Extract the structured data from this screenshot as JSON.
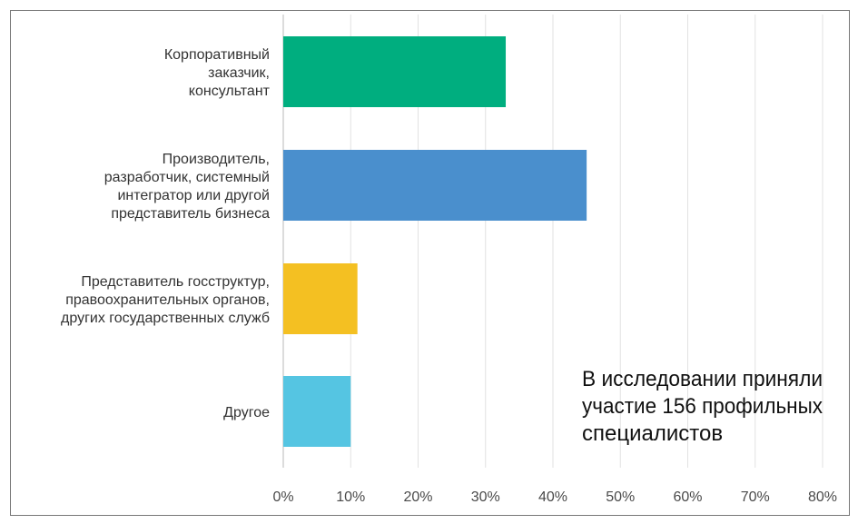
{
  "chart_data": {
    "type": "bar",
    "orientation": "horizontal",
    "categories": [
      [
        "Корпоративный",
        "заказчик,",
        "консультант"
      ],
      [
        "Производитель,",
        "разработчик, системный",
        "интегратор или другой",
        "представитель бизнеса"
      ],
      [
        "Представитель госструктур,",
        "правоохранительных органов,",
        "других государственных служб"
      ],
      [
        "Другое"
      ]
    ],
    "values": [
      33,
      45,
      11,
      10
    ],
    "colors": [
      "#00ae7f",
      "#4a8fcd",
      "#f4c022",
      "#55c5e2"
    ],
    "xlim": [
      0,
      80
    ],
    "x_ticks": [
      0,
      10,
      20,
      30,
      40,
      50,
      60,
      70,
      80
    ],
    "tick_labels": [
      "0%",
      "10%",
      "20%",
      "30%",
      "40%",
      "50%",
      "60%",
      "70%",
      "80%"
    ],
    "grid": true,
    "annotation": [
      "В исследовании приняли",
      "участие 156 профильных",
      "специалистов"
    ]
  }
}
